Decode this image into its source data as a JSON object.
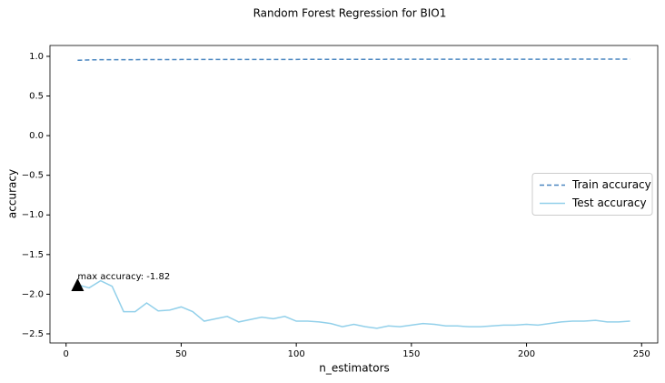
{
  "chart_data": {
    "type": "line",
    "title": "Random Forest Regression for BIO1",
    "xlabel": "n_estimators",
    "ylabel": "accuracy",
    "x": [
      5,
      10,
      15,
      20,
      25,
      30,
      35,
      40,
      45,
      50,
      55,
      60,
      65,
      70,
      75,
      80,
      85,
      90,
      95,
      100,
      105,
      110,
      115,
      120,
      125,
      130,
      135,
      140,
      145,
      150,
      155,
      160,
      165,
      170,
      175,
      180,
      185,
      190,
      195,
      200,
      205,
      210,
      215,
      220,
      225,
      230,
      235,
      240,
      245
    ],
    "series": [
      {
        "name": "Train accuracy",
        "color": "#4a86c0",
        "linestyle": "dashed",
        "values": [
          0.95,
          0.955,
          0.958,
          0.958,
          0.958,
          0.958,
          0.959,
          0.959,
          0.959,
          0.96,
          0.96,
          0.96,
          0.96,
          0.96,
          0.96,
          0.961,
          0.961,
          0.961,
          0.961,
          0.961,
          0.962,
          0.962,
          0.962,
          0.962,
          0.962,
          0.962,
          0.962,
          0.963,
          0.963,
          0.963,
          0.963,
          0.963,
          0.963,
          0.963,
          0.963,
          0.964,
          0.964,
          0.964,
          0.964,
          0.964,
          0.964,
          0.964,
          0.964,
          0.965,
          0.965,
          0.965,
          0.965,
          0.965,
          0.965
        ]
      },
      {
        "name": "Test accuracy",
        "color": "#92d0ea",
        "linestyle": "solid",
        "values": [
          -1.88,
          -1.92,
          -1.83,
          -1.9,
          -2.22,
          -2.22,
          -2.11,
          -2.21,
          -2.2,
          -2.16,
          -2.22,
          -2.34,
          -2.31,
          -2.28,
          -2.35,
          -2.32,
          -2.29,
          -2.31,
          -2.28,
          -2.34,
          -2.34,
          -2.35,
          -2.37,
          -2.41,
          -2.38,
          -2.41,
          -2.43,
          -2.4,
          -2.41,
          -2.39,
          -2.37,
          -2.38,
          -2.4,
          -2.4,
          -2.41,
          -2.41,
          -2.4,
          -2.39,
          -2.39,
          -2.38,
          -2.39,
          -2.37,
          -2.35,
          -2.34,
          -2.34,
          -2.33,
          -2.35,
          -2.35,
          -2.34
        ]
      }
    ],
    "annotation": {
      "text": "max accuracy: -1.82",
      "x": 5,
      "y": -1.88
    },
    "xlim": [
      -7,
      257
    ],
    "xticks": [
      0,
      50,
      100,
      150,
      200,
      250
    ],
    "ylim": [
      -2.615,
      1.137
    ],
    "yticks": [
      {
        "value": 1.0,
        "label": "1.0"
      },
      {
        "value": 0.5,
        "label": "0.5"
      },
      {
        "value": 0.0,
        "label": "0.0"
      },
      {
        "value": -0.5,
        "label": "−0.5"
      },
      {
        "value": -1.0,
        "label": "−1.0"
      },
      {
        "value": -1.5,
        "label": "−1.5"
      },
      {
        "value": -2.0,
        "label": "−2.0"
      },
      {
        "value": -2.5,
        "label": "−2.5"
      }
    ],
    "legend": "center right",
    "grid": false
  }
}
